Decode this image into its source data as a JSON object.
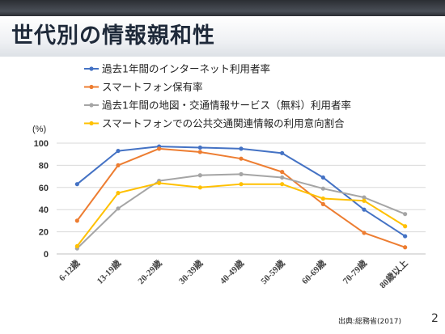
{
  "slide": {
    "title": "世代別の情報親和性",
    "source": "出典:総務省(2017)",
    "page_number": "2"
  },
  "chart_data": {
    "type": "line",
    "title": "",
    "xlabel": "",
    "ylabel": "(%)",
    "ylim": [
      0,
      100
    ],
    "yticks": [
      0,
      20,
      40,
      60,
      80,
      100
    ],
    "grid": true,
    "legend_position": "top",
    "categories": [
      "6-12歳",
      "13-19歳",
      "20-29歳",
      "30-39歳",
      "40-49歳",
      "50-59歳",
      "60-69歳",
      "70-79歳",
      "80歳以上"
    ],
    "series": [
      {
        "name": "過去1年間のインターネット利用者率",
        "color": "#4472C4",
        "values": [
          63,
          93,
          97,
          96,
          95,
          91,
          69,
          40,
          16
        ]
      },
      {
        "name": "スマートフォン保有率",
        "color": "#ED7D31",
        "values": [
          30,
          80,
          95,
          92,
          86,
          74,
          45,
          19,
          6
        ]
      },
      {
        "name": "過去1年間の地図・交通情報サービス（無料）利用者率",
        "color": "#A5A5A5",
        "values": [
          5,
          41,
          66,
          71,
          72,
          69,
          59,
          51,
          36
        ]
      },
      {
        "name": "スマートフォンでの公共交通関連情報の利用意向割合",
        "color": "#FFC000",
        "values": [
          7,
          55,
          64,
          60,
          63,
          63,
          50,
          48,
          25
        ]
      }
    ]
  }
}
